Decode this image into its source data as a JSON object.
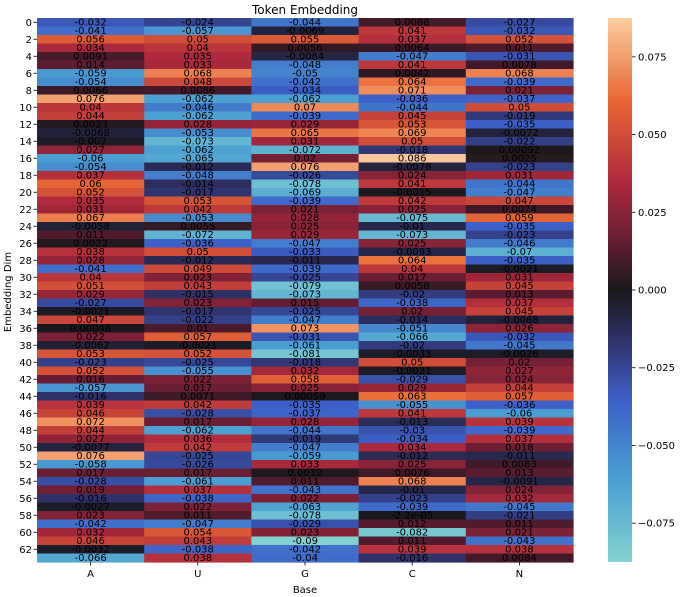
{
  "chart_data": {
    "type": "heatmap",
    "title": "Token Embedding",
    "xlabel": "Base",
    "ylabel": "Embedding Dim",
    "x_categories": [
      "A",
      "U",
      "G",
      "C",
      "N"
    ],
    "y_tick_labels": [
      "0",
      "2",
      "4",
      "6",
      "8",
      "10",
      "12",
      "14",
      "16",
      "18",
      "20",
      "22",
      "24",
      "26",
      "28",
      "30",
      "32",
      "34",
      "36",
      "38",
      "40",
      "42",
      "44",
      "46",
      "48",
      "50",
      "52",
      "54",
      "56",
      "58",
      "60",
      "62"
    ],
    "rows": 64,
    "colorbar": {
      "vmin": -0.0875,
      "vmax": 0.0875,
      "ticks": [
        "0.075",
        "0.050",
        "0.025",
        "0.000",
        "−0.025",
        "−0.050",
        "−0.075"
      ],
      "tick_values": [
        0.075,
        0.05,
        0.025,
        0.0,
        -0.025,
        -0.05,
        -0.075
      ],
      "colormap": "icefire"
    },
    "annotations": [
      [
        "-0.032",
        "-0.024",
        "-0.044",
        "0.0088",
        "-0.027"
      ],
      [
        "-0.041",
        "-0.057",
        "-0.0069",
        "0.041",
        "-0.032"
      ],
      [
        "0.056",
        "0.05",
        "0.055",
        "0.037",
        "0.052"
      ],
      [
        "0.034",
        "0.04",
        "0.0056",
        "0.0064",
        "0.011"
      ],
      [
        "0.0091",
        "0.035",
        "-0.0084",
        "-0.047",
        "-0.031"
      ],
      [
        "0.014",
        "0.033",
        "-0.048",
        "0.041",
        "0.0078"
      ],
      [
        "-0.059",
        "0.068",
        "-0.05",
        "0.0042",
        "0.068"
      ],
      [
        "-0.054",
        "0.048",
        "-0.042",
        "0.064",
        "-0.039"
      ],
      [
        "0.0066",
        "0.0086",
        "-0.034",
        "0.071",
        "0.021"
      ],
      [
        "0.076",
        "-0.062",
        "-0.062",
        "-0.036",
        "-0.037"
      ],
      [
        "0.04",
        "-0.046",
        "0.07",
        "-0.044",
        "0.05"
      ],
      [
        "0.044",
        "-0.062",
        "-0.039",
        "0.045",
        "-0.019"
      ],
      [
        "0.0023",
        "0.028",
        "0.029",
        "0.053",
        "-0.035"
      ],
      [
        "-0.0068",
        "-0.053",
        "0.065",
        "0.069",
        "-0.0072"
      ],
      [
        "-0.002",
        "-0.073",
        "0.031",
        "0.05",
        "-0.022"
      ],
      [
        "0.027",
        "-0.062",
        "-0.072",
        "-0.018",
        "0.00092"
      ],
      [
        "-0.06",
        "-0.065",
        "0.02",
        "0.086",
        "0.0025"
      ],
      [
        "-0.054",
        "-0.012",
        "0.076",
        "-0.0078",
        "-0.023"
      ],
      [
        "0.037",
        "-0.048",
        "-0.026",
        "0.024",
        "0.031"
      ],
      [
        "0.06",
        "-0.014",
        "-0.078",
        "0.041",
        "-0.044"
      ],
      [
        "0.052",
        "-0.017",
        "-0.069",
        "-0.0015",
        "-0.047"
      ],
      [
        "0.035",
        "0.053",
        "-0.039",
        "0.042",
        "0.047"
      ],
      [
        "0.031",
        "0.042",
        "0.021",
        "0.025",
        "0.0074"
      ],
      [
        "0.067",
        "-0.053",
        "0.028",
        "-0.075",
        "0.059"
      ],
      [
        "-0.0058",
        "0.0055",
        "0.025",
        "-0.01",
        "-0.035"
      ],
      [
        "0.011",
        "-0.072",
        "0.029",
        "-0.073",
        "-0.023"
      ],
      [
        "0.0022",
        "-0.036",
        "-0.047",
        "0.025",
        "-0.046"
      ],
      [
        "0.038",
        "0.05",
        "-0.033",
        "-0.0093",
        "-0.07"
      ],
      [
        "0.028",
        "-0.012",
        "-0.011",
        "0.064",
        "-0.035"
      ],
      [
        "-0.041",
        "0.049",
        "-0.039",
        "0.04",
        "-0.0021"
      ],
      [
        "0.04",
        "0.023",
        "-0.025",
        "0.017",
        "0.031"
      ],
      [
        "0.051",
        "0.043",
        "-0.079",
        "0.0058",
        "0.045"
      ],
      [
        "0.029",
        "-0.015",
        "-0.073",
        "-0.02",
        "0.013"
      ],
      [
        "-0.027",
        "0.023",
        "0.015",
        "-0.038",
        "0.037"
      ],
      [
        "-0.0021",
        "-0.017",
        "-0.025",
        "0.02",
        "0.045"
      ],
      [
        "0.047",
        "-0.022",
        "-0.047",
        "-0.014",
        "-0.0068"
      ],
      [
        "0.00048",
        "0.01",
        "0.073",
        "-0.051",
        "0.026"
      ],
      [
        "0.022",
        "0.057",
        "-0.031",
        "-0.066",
        "-0.032"
      ],
      [
        "-0.0062",
        "-0.0021",
        "-0.061",
        "-0.02",
        "-0.045"
      ],
      [
        "0.053",
        "0.052",
        "-0.081",
        "-0.0033",
        "-0.0026"
      ],
      [
        "-0.023",
        "-0.025",
        "-0.018",
        "0.05",
        "0.02"
      ],
      [
        "0.052",
        "-0.055",
        "0.032",
        "-0.0021",
        "0.027"
      ],
      [
        "0.016",
        "0.022",
        "0.058",
        "-0.029",
        "0.024"
      ],
      [
        "-0.057",
        "0.017",
        "0.025",
        "0.029",
        "0.044"
      ],
      [
        "-0.016",
        "0.0071",
        "0.00059",
        "0.063",
        "0.057"
      ],
      [
        "0.039",
        "0.042",
        "-0.035",
        "-0.055",
        "-0.036"
      ],
      [
        "0.046",
        "-0.028",
        "-0.037",
        "0.041",
        "-0.06"
      ],
      [
        "0.072",
        "0.017",
        "0.028",
        "-0.013",
        "0.039"
      ],
      [
        "0.044",
        "-0.062",
        "-0.044",
        "-0.03",
        "-0.039"
      ],
      [
        "0.027",
        "0.036",
        "-0.019",
        "-0.034",
        "0.037"
      ],
      [
        "-0.0077",
        "0.042",
        "-0.047",
        "0.034",
        "0.018"
      ],
      [
        "0.076",
        "-0.025",
        "-0.059",
        "-0.012",
        "-0.011"
      ],
      [
        "-0.058",
        "-0.026",
        "0.033",
        "0.025",
        "0.0083"
      ],
      [
        "0.017",
        "0.017",
        "0.0012",
        "0.0076",
        "0.013"
      ],
      [
        "-0.028",
        "-0.061",
        "0.011",
        "0.068",
        "-0.0091"
      ],
      [
        "0.019",
        "0.037",
        "-0.043",
        "-0.01",
        "0.024"
      ],
      [
        "-0.016",
        "-0.038",
        "0.022",
        "-0.023",
        "0.032"
      ],
      [
        "-0.0027",
        "0.022",
        "-0.063",
        "-0.039",
        "-0.045"
      ],
      [
        "0.023",
        "0.011",
        "-0.078",
        "-2.2e-05",
        "-0.021"
      ],
      [
        "-0.042",
        "-0.047",
        "-0.029",
        "0.012",
        "0.011"
      ],
      [
        "0.032",
        "0.054",
        "0.023",
        "-0.082",
        "0.021"
      ],
      [
        "0.046",
        "0.043",
        "-0.09",
        "0.011",
        "-0.043"
      ],
      [
        "-0.0032",
        "-0.038",
        "-0.042",
        "0.039",
        "0.038"
      ],
      [
        "-0.066",
        "0.038",
        "-0.04",
        "-0.016",
        "0.0084"
      ]
    ]
  }
}
